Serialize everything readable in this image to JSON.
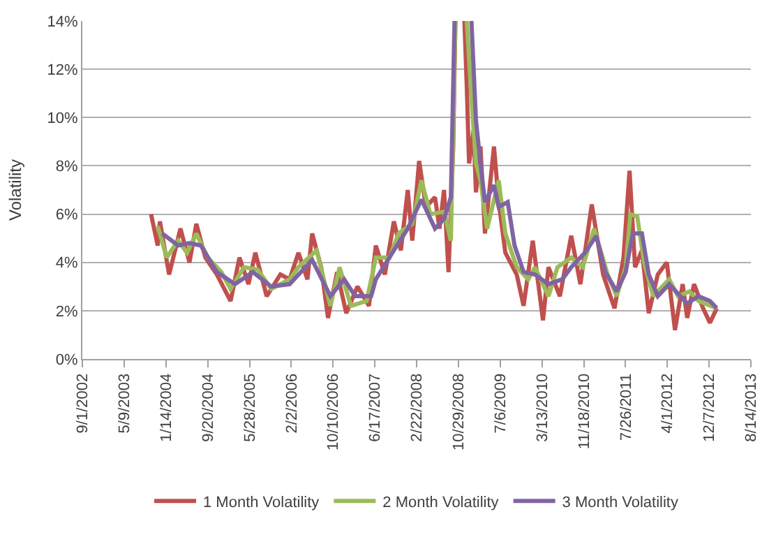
{
  "chart_data": {
    "type": "line",
    "ylabel": "Volatility",
    "xlim": [
      "2002-09-01",
      "2013-08-14"
    ],
    "xticks": [
      {
        "value": "2002-09-01",
        "label": "9/1/2002"
      },
      {
        "value": "2003-05-09",
        "label": "5/9/2003"
      },
      {
        "value": "2004-01-14",
        "label": "1/14/2004"
      },
      {
        "value": "2004-09-20",
        "label": "9/20/2004"
      },
      {
        "value": "2005-05-28",
        "label": "5/28/2005"
      },
      {
        "value": "2006-02-02",
        "label": "2/2/2006"
      },
      {
        "value": "2006-10-10",
        "label": "10/10/2006"
      },
      {
        "value": "2007-06-17",
        "label": "6/17/2007"
      },
      {
        "value": "2008-02-22",
        "label": "2/22/2008"
      },
      {
        "value": "2008-10-29",
        "label": "10/29/2008"
      },
      {
        "value": "2009-07-06",
        "label": "7/6/2009"
      },
      {
        "value": "2010-03-13",
        "label": "3/13/2010"
      },
      {
        "value": "2010-11-18",
        "label": "11/18/2010"
      },
      {
        "value": "2011-07-26",
        "label": "7/26/2011"
      },
      {
        "value": "2012-04-01",
        "label": "4/1/2012"
      },
      {
        "value": "2012-12-07",
        "label": "12/7/2012"
      },
      {
        "value": "2013-08-14",
        "label": "8/14/2013"
      }
    ],
    "ylim": [
      0,
      14
    ],
    "yticks": [
      {
        "value": 0,
        "label": "0%"
      },
      {
        "value": 2,
        "label": "2%"
      },
      {
        "value": 4,
        "label": "4%"
      },
      {
        "value": 6,
        "label": "6%"
      },
      {
        "value": 8,
        "label": "8%"
      },
      {
        "value": 10,
        "label": "10%"
      },
      {
        "value": 12,
        "label": "12%"
      },
      {
        "value": 14,
        "label": "14%"
      }
    ],
    "grid": "y",
    "legend": "bottom",
    "marker": "none",
    "line_style": "solid",
    "series": [
      {
        "name": "1 Month Volatility",
        "color": "#c0504d",
        "x": [
          "2003-10-17",
          "2003-11-26",
          "2003-12-09",
          "2004-02-02",
          "2004-04-10",
          "2004-06-03",
          "2004-07-14",
          "2004-09-06",
          "2004-11-14",
          "2005-02-04",
          "2005-03-29",
          "2005-05-22",
          "2005-07-02",
          "2005-09-08",
          "2005-11-29",
          "2006-01-23",
          "2006-03-17",
          "2006-05-10",
          "2006-06-07",
          "2006-07-31",
          "2006-09-10",
          "2006-11-03",
          "2006-12-28",
          "2007-03-05",
          "2007-05-13",
          "2007-06-23",
          "2007-08-16",
          "2007-10-09",
          "2007-11-20",
          "2007-12-31",
          "2008-01-27",
          "2008-03-08",
          "2008-04-18",
          "2008-06-11",
          "2008-07-08",
          "2008-08-04",
          "2008-08-31",
          "2008-09-28",
          "2008-10-11",
          "2008-11-05",
          "2008-12-04",
          "2008-12-18",
          "2009-01-01",
          "2009-01-28",
          "2009-02-11",
          "2009-03-10",
          "2009-04-06",
          "2009-05-30",
          "2009-06-27",
          "2009-08-06",
          "2009-10-13",
          "2009-11-23",
          "2010-01-17",
          "2010-03-19",
          "2010-04-21",
          "2010-06-28",
          "2010-09-04",
          "2010-10-29",
          "2011-01-05",
          "2011-03-14",
          "2011-05-21",
          "2011-07-14",
          "2011-08-19",
          "2011-09-21",
          "2011-11-01",
          "2011-12-12",
          "2012-02-04",
          "2012-03-29",
          "2012-05-17",
          "2012-07-02",
          "2012-07-29",
          "2012-09-08",
          "2012-11-01",
          "2012-12-12",
          "2013-01-22"
        ],
        "values": [
          6.0,
          4.7,
          5.7,
          3.5,
          5.4,
          4.0,
          5.6,
          4.2,
          3.5,
          2.4,
          4.2,
          3.1,
          4.4,
          2.6,
          3.5,
          3.3,
          4.4,
          3.3,
          5.2,
          3.8,
          1.7,
          3.6,
          1.9,
          3.0,
          2.2,
          4.7,
          3.5,
          5.7,
          4.5,
          7.0,
          4.9,
          8.2,
          6.3,
          6.7,
          5.4,
          7.0,
          3.6,
          8.8,
          14,
          null,
          14,
          11.3,
          8.1,
          9.5,
          6.9,
          8.8,
          5.2,
          8.8,
          6.5,
          4.4,
          3.5,
          2.2,
          4.9,
          1.6,
          3.8,
          2.6,
          5.1,
          3.1,
          6.4,
          3.5,
          2.1,
          4.2,
          7.8,
          3.8,
          4.5,
          1.9,
          3.5,
          4.0,
          1.2,
          3.1,
          1.7,
          3.1,
          2.1,
          1.5,
          2.1
        ]
      },
      {
        "name": "2 Month Volatility",
        "color": "#9bbb59",
        "x": [
          "2003-11-26",
          "2004-01-19",
          "2004-03-27",
          "2004-05-20",
          "2004-07-14",
          "2004-09-20",
          "2004-12-11",
          "2005-02-04",
          "2005-04-25",
          "2005-07-16",
          "2005-10-05",
          "2006-01-23",
          "2006-03-17",
          "2006-07-04",
          "2006-09-24",
          "2006-11-18",
          "2007-01-25",
          "2007-04-29",
          "2007-06-23",
          "2007-09-13",
          "2007-11-06",
          "2008-01-27",
          "2008-03-22",
          "2008-05-14",
          "2008-08-04",
          "2008-09-14",
          "2008-10-11",
          "2008-11-10",
          "2008-12-18",
          "2009-01-15",
          "2009-02-11",
          "2009-03-10",
          "2009-04-19",
          "2009-06-27",
          "2009-08-06",
          "2009-10-13",
          "2009-12-21",
          "2010-01-30",
          "2010-04-21",
          "2010-06-14",
          "2010-09-04",
          "2010-11-12",
          "2011-01-19",
          "2011-04-10",
          "2011-06-03",
          "2011-07-27",
          "2011-08-24",
          "2011-10-04",
          "2011-11-14",
          "2012-01-08",
          "2012-04-12",
          "2012-06-04",
          "2012-08-12",
          "2012-10-05",
          "2013-01-22"
        ],
        "values": [
          5.5,
          4.2,
          4.9,
          4.4,
          5.2,
          4.2,
          3.6,
          2.9,
          3.8,
          3.7,
          2.9,
          3.3,
          3.8,
          4.5,
          2.2,
          3.8,
          2.2,
          2.4,
          4.2,
          4.2,
          5.2,
          5.6,
          7.4,
          6.0,
          6.1,
          4.9,
          14,
          null,
          14,
          10.8,
          8.1,
          7.4,
          5.4,
          7.4,
          5.2,
          3.8,
          3.3,
          3.8,
          2.6,
          3.8,
          4.2,
          3.8,
          5.4,
          3.5,
          2.6,
          3.8,
          6.0,
          5.9,
          4.0,
          2.6,
          3.3,
          2.6,
          2.8,
          2.4,
          2.1
        ]
      },
      {
        "name": "3 Month Volatility",
        "color": "#8064a2",
        "x": [
          "2003-12-22",
          "2004-03-27",
          "2004-06-03",
          "2004-08-10",
          "2004-11-14",
          "2005-03-02",
          "2005-06-18",
          "2005-10-05",
          "2006-01-23",
          "2006-06-07",
          "2006-09-24",
          "2006-12-15",
          "2007-02-20",
          "2007-05-26",
          "2007-06-23",
          "2007-10-09",
          "2007-12-31",
          "2008-03-22",
          "2008-06-11",
          "2008-08-04",
          "2008-09-14",
          "2008-10-06",
          "2008-11-20",
          "2009-01-15",
          "2009-02-11",
          "2009-03-10",
          "2009-04-06",
          "2009-05-30",
          "2009-06-27",
          "2009-08-20",
          "2009-09-30",
          "2009-11-23",
          "2010-01-30",
          "2010-04-21",
          "2010-07-12",
          "2010-09-04",
          "2010-11-25",
          "2011-02-01",
          "2011-03-27",
          "2011-06-03",
          "2011-07-27",
          "2011-09-07",
          "2011-11-01",
          "2011-12-12",
          "2012-02-04",
          "2012-04-12",
          "2012-06-18",
          "2012-07-29",
          "2012-10-05",
          "2012-12-12",
          "2013-01-22"
        ],
        "values": [
          5.2,
          4.7,
          4.8,
          4.7,
          3.6,
          3.1,
          3.6,
          3.0,
          3.1,
          4.1,
          2.6,
          3.3,
          2.6,
          2.6,
          3.3,
          4.5,
          5.4,
          6.6,
          5.4,
          5.8,
          6.7,
          14,
          null,
          14,
          9.9,
          8.1,
          6.5,
          7.2,
          6.3,
          6.5,
          4.7,
          3.6,
          3.5,
          3.1,
          3.3,
          3.8,
          4.4,
          5.1,
          3.6,
          2.8,
          3.6,
          5.2,
          5.2,
          3.5,
          2.6,
          3.1,
          2.6,
          2.3,
          2.6,
          2.4,
          2.1
        ]
      }
    ]
  }
}
